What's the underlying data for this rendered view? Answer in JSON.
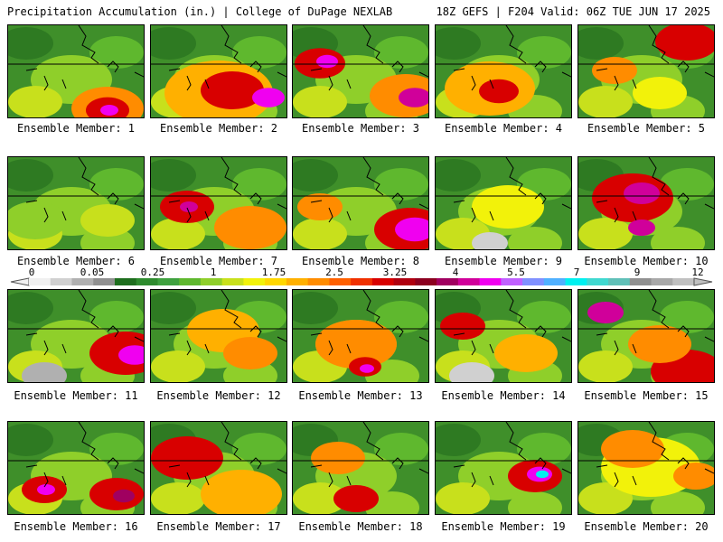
{
  "header": {
    "left": "Precipitation Accumulation (in.) | College of DuPage NEXLAB",
    "right": "18Z GEFS | F204 Valid: 06Z TUE JUN 17 2025"
  },
  "members": [
    {
      "label": "Ensemble Member: 1"
    },
    {
      "label": "Ensemble Member: 2"
    },
    {
      "label": "Ensemble Member: 3"
    },
    {
      "label": "Ensemble Member: 4"
    },
    {
      "label": "Ensemble Member: 5"
    },
    {
      "label": "Ensemble Member: 6"
    },
    {
      "label": "Ensemble Member: 7"
    },
    {
      "label": "Ensemble Member: 8"
    },
    {
      "label": "Ensemble Member: 9"
    },
    {
      "label": "Ensemble Member: 10"
    },
    {
      "label": "Ensemble Member: 11"
    },
    {
      "label": "Ensemble Member: 12"
    },
    {
      "label": "Ensemble Member: 13"
    },
    {
      "label": "Ensemble Member: 14"
    },
    {
      "label": "Ensemble Member: 15"
    },
    {
      "label": "Ensemble Member: 16"
    },
    {
      "label": "Ensemble Member: 17"
    },
    {
      "label": "Ensemble Member: 18"
    },
    {
      "label": "Ensemble Member: 19"
    },
    {
      "label": "Ensemble Member: 20"
    }
  ],
  "colorbar": {
    "tick_labels": [
      "0",
      "0.05",
      "0.25",
      "1",
      "1.75",
      "2.5",
      "3.25",
      "4",
      "5.5",
      "7",
      "9",
      "12"
    ],
    "colors": [
      "#f0f0f0",
      "#d0d0d0",
      "#b0b0b0",
      "#909090",
      "#1e6e1e",
      "#2e8b2e",
      "#3fa13f",
      "#5fb82e",
      "#8fcf2a",
      "#c8e01c",
      "#f2f20a",
      "#ffd700",
      "#ffb000",
      "#ff8c00",
      "#ff6000",
      "#f03000",
      "#d80000",
      "#b00010",
      "#8c0020",
      "#a00060",
      "#d0009a",
      "#f000f0",
      "#c060ff",
      "#8090ff",
      "#50b0ff",
      "#00f0f0",
      "#40d8d0",
      "#60c0b8",
      "#909090",
      "#a8a8a8",
      "#c0c0c0"
    ]
  }
}
